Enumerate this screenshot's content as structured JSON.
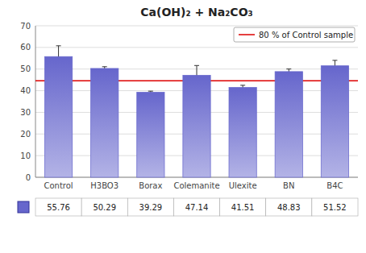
{
  "chart_data": {
    "type": "bar",
    "title": "Ca(OH)₂ + Na₂CO₃",
    "categories": [
      "Control",
      "H3BO3",
      "Borax",
      "Colemanite",
      "Ulexite",
      "BN",
      "B4C"
    ],
    "values": [
      55.76,
      50.29,
      39.29,
      47.14,
      41.51,
      48.83,
      51.52
    ],
    "errors": [
      5.0,
      0.8,
      0.5,
      4.5,
      1.0,
      1.2,
      2.5
    ],
    "color": "#6666cc",
    "reference_line": {
      "value": 44.608,
      "label": "80 % of Control sample",
      "color": "#dd0000"
    },
    "legend": "upper right",
    "ylim": [
      0,
      70
    ],
    "yticks": [
      0,
      10,
      20,
      30,
      40,
      50,
      60,
      70
    ],
    "grid": true,
    "table_values": [
      "55.76",
      "50.29",
      "39.29",
      "47.14",
      "41.51",
      "48.83",
      "51.52"
    ]
  }
}
